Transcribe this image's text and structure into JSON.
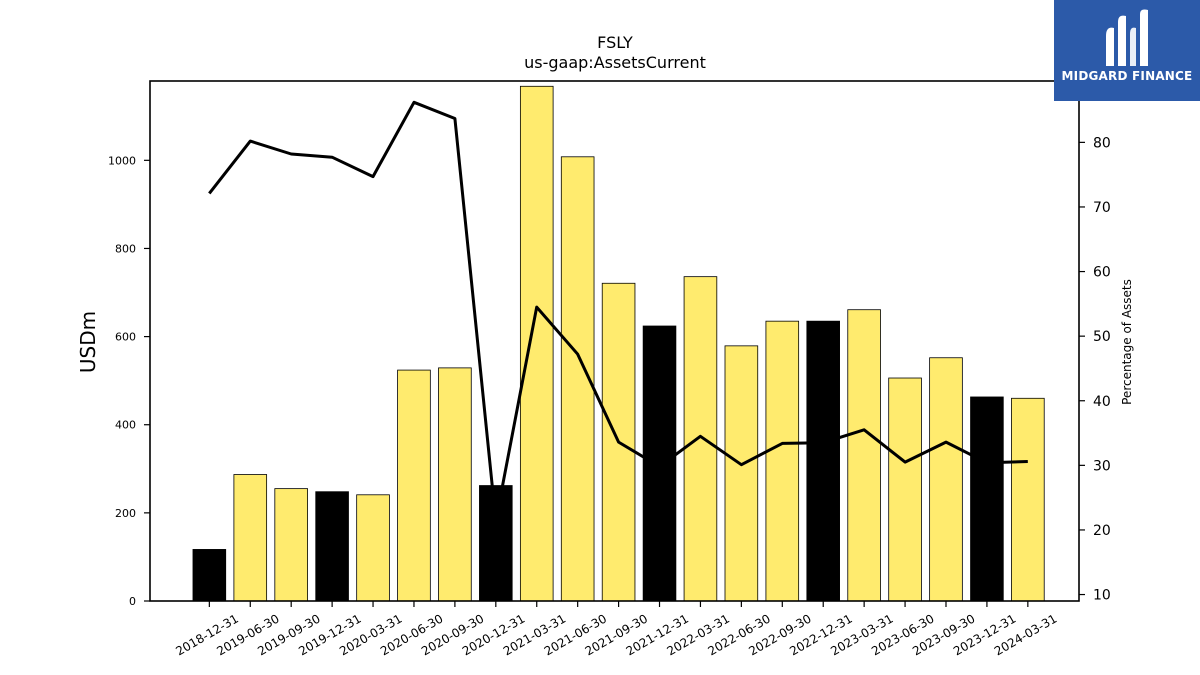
{
  "chart_data": {
    "type": "bar",
    "title": "FSLY",
    "subtitle": "us-gaap:AssetsCurrent",
    "ylabel": "USDm",
    "y2label": "Percentage of Assets",
    "ylim": [
      0,
      1180
    ],
    "y2lim": [
      9,
      89.5
    ],
    "yticks": [
      0,
      200,
      400,
      600,
      800,
      1000
    ],
    "y2ticks": [
      10,
      20,
      30,
      40,
      50,
      60,
      70,
      80
    ],
    "categories": [
      "2018-12-31",
      "2019-06-30",
      "2019-09-30",
      "2019-12-31",
      "2020-03-31",
      "2020-06-30",
      "2020-09-30",
      "2020-12-31",
      "2021-03-31",
      "2021-06-30",
      "2021-09-30",
      "2021-12-31",
      "2022-03-31",
      "2022-06-30",
      "2022-09-30",
      "2022-12-31",
      "2023-03-31",
      "2023-06-30",
      "2023-09-30",
      "2023-12-31",
      "2024-03-31"
    ],
    "series": [
      {
        "type": "bar",
        "axis": "left",
        "values": [
          117,
          287,
          255,
          248,
          241,
          524,
          529,
          262,
          1168,
          1008,
          721,
          624,
          736,
          579,
          635,
          635,
          661,
          506,
          552,
          463,
          460
        ],
        "colors": [
          "#000000",
          "#ffeb6e",
          "#ffeb6e",
          "#000000",
          "#ffeb6e",
          "#ffeb6e",
          "#ffeb6e",
          "#000000",
          "#ffeb6e",
          "#ffeb6e",
          "#ffeb6e",
          "#000000",
          "#ffeb6e",
          "#ffeb6e",
          "#ffeb6e",
          "#000000",
          "#ffeb6e",
          "#ffeb6e",
          "#ffeb6e",
          "#000000",
          "#ffeb6e"
        ]
      },
      {
        "type": "line",
        "axis": "right",
        "color": "#000000",
        "values": [
          72.1,
          80.2,
          78.2,
          77.7,
          74.7,
          86.2,
          83.7,
          21.4,
          54.5,
          47.2,
          33.6,
          29.8,
          34.5,
          30.1,
          33.4,
          33.5,
          35.5,
          30.5,
          33.6,
          30.4,
          30.6
        ]
      }
    ],
    "grid": false,
    "legend": "none"
  },
  "logo": {
    "text": "MIDGARD FINANCE",
    "bg_color": "#2c5aa9"
  }
}
